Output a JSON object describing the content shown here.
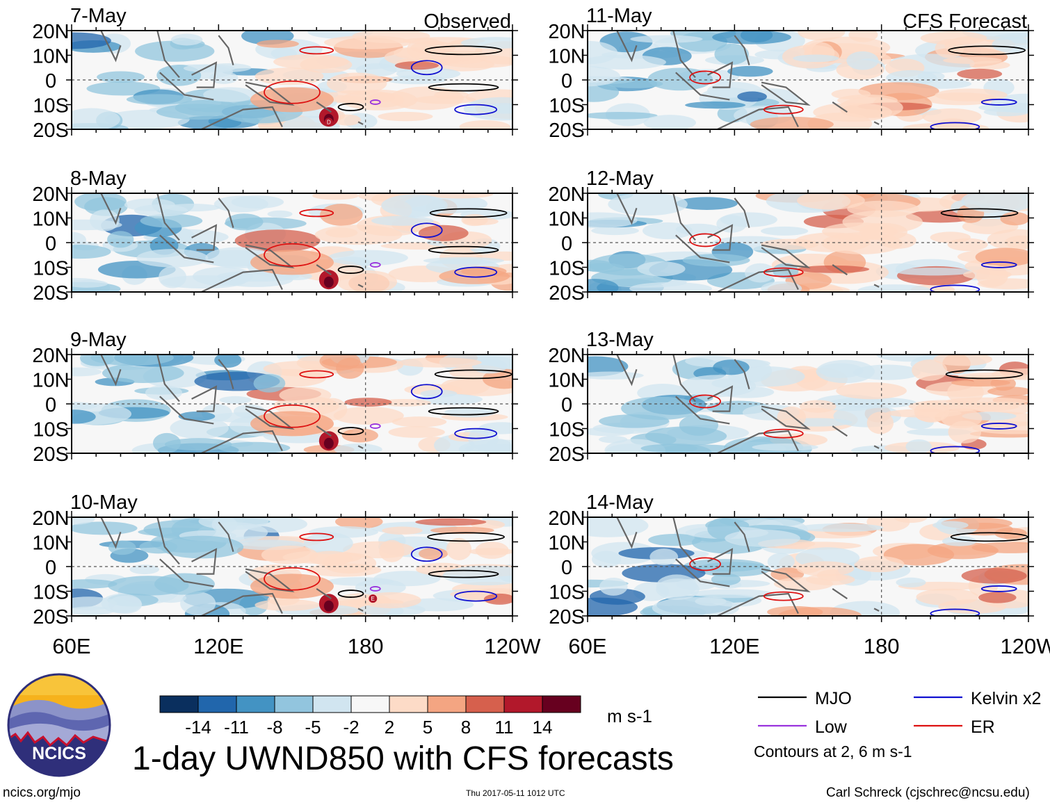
{
  "chart_data": {
    "type": "heatmap",
    "title": "1-day UWND850 with CFS forecasts",
    "variable": "850 hPa zonal wind anomaly",
    "units": "m s-1",
    "column_headers": [
      "Observed",
      "CFS Forecast"
    ],
    "panels": [
      {
        "date": "7-May",
        "source": "observed",
        "head": "Observed"
      },
      {
        "date": "8-May",
        "source": "observed",
        "head": ""
      },
      {
        "date": "9-May",
        "source": "observed",
        "head": ""
      },
      {
        "date": "10-May",
        "source": "observed",
        "head": ""
      },
      {
        "date": "11-May",
        "source": "forecast",
        "head": "CFS Forecast"
      },
      {
        "date": "12-May",
        "source": "forecast",
        "head": ""
      },
      {
        "date": "13-May",
        "source": "forecast",
        "head": ""
      },
      {
        "date": "14-May",
        "source": "forecast",
        "head": ""
      }
    ],
    "lon_ticks": [
      {
        "label": "60E",
        "lon": 60
      },
      {
        "label": "120E",
        "lon": 120
      },
      {
        "label": "180",
        "lon": 180
      },
      {
        "label": "120W",
        "lon": 240
      }
    ],
    "lat_ticks": [
      {
        "label": "20N",
        "lat": 20
      },
      {
        "label": "10N",
        "lat": 10
      },
      {
        "label": "0",
        "lat": 0
      },
      {
        "label": "10S",
        "lat": -10
      },
      {
        "label": "20S",
        "lat": -20
      }
    ],
    "xlim": [
      60,
      240
    ],
    "ylim": [
      -20,
      20
    ],
    "colorbar": {
      "tick_labels": [
        "-14",
        "-11",
        "-8",
        "-5",
        "-2",
        "2",
        "5",
        "8",
        "11",
        "14"
      ],
      "colors": [
        "#0a2f5e",
        "#2166ac",
        "#4393c3",
        "#92c5de",
        "#d1e5f0",
        "#f7f7f7",
        "#fddbc7",
        "#f4a582",
        "#d6604d",
        "#b2182b",
        "#67001f"
      ]
    },
    "legend": [
      {
        "label": "MJO",
        "color": "#000000"
      },
      {
        "label": "Kelvin x2",
        "color": "#1010d0"
      },
      {
        "label": "Low",
        "color": "#9933dd"
      },
      {
        "label": "ER",
        "color": "#dd1111"
      }
    ],
    "contour_note": "Contours at 2, 6 m s-1",
    "storm_labels": [
      "D",
      "E"
    ]
  },
  "footer": {
    "left": "ncics.org/mjo",
    "center": "Thu 2017-05-11 1012 UTC",
    "right": "Carl Schreck (cjschrec@ncsu.edu)",
    "logo_text": "NCICS"
  }
}
